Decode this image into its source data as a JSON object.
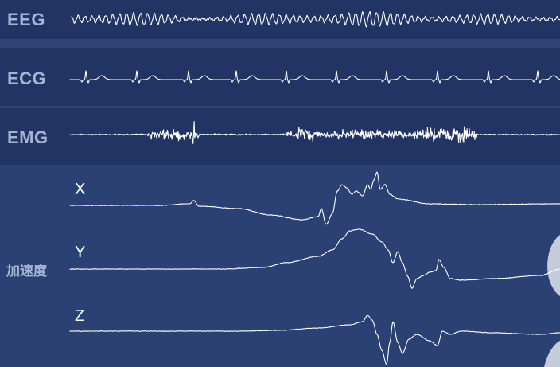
{
  "signals": {
    "eeg": {
      "label": "EEG",
      "color": "#ffffff"
    },
    "ecg": {
      "label": "ECG",
      "color": "#ffffff"
    },
    "emg": {
      "label": "EMG",
      "color": "#ffffff"
    }
  },
  "acceleration": {
    "label": "加速度",
    "axes": [
      {
        "label": "X"
      },
      {
        "label": "Y"
      },
      {
        "label": "Z"
      }
    ]
  },
  "colors": {
    "band_dark": "#223463",
    "band_light": "#2d4475",
    "accel_background": "#2b4173",
    "label_text": "#a5b4d4",
    "trace": "#ffffff",
    "figure_silhouette": "#c4cbdb"
  },
  "decorations": {
    "figure_silhouette": "partial-human-figure-right-edge"
  }
}
